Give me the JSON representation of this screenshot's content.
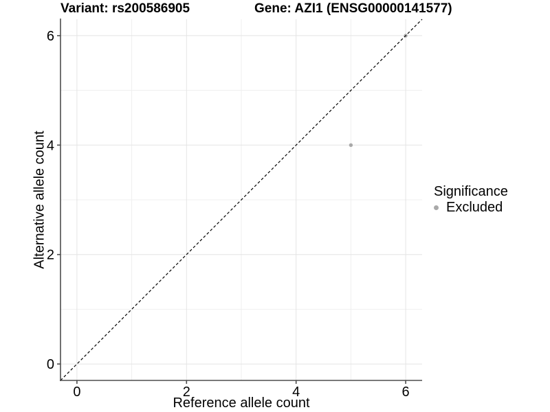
{
  "chart_data": {
    "type": "scatter",
    "title_left": "Variant: rs200586905",
    "title_right": "Gene: AZI1 (ENSG00000141577)",
    "xlabel": "Reference allele count",
    "ylabel": "Alternative allele count",
    "xlim": [
      -0.3,
      6.3
    ],
    "ylim": [
      -0.3,
      6.3
    ],
    "x_major_ticks": [
      0,
      2,
      4,
      6
    ],
    "y_major_ticks": [
      0,
      2,
      4,
      6
    ],
    "x_minor_ticks": [
      1,
      3,
      5
    ],
    "y_minor_ticks": [
      1,
      3,
      5
    ],
    "grid": true,
    "legend_position": "right",
    "identity_line": {
      "style": "dashed",
      "from": [
        -0.3,
        -0.3
      ],
      "to": [
        6.3,
        6.3
      ],
      "color": "#000000"
    },
    "series": [
      {
        "name": "Excluded",
        "color": "#a9a9a9",
        "points": [
          {
            "x": 5,
            "y": 4
          },
          {
            "x": 6,
            "y": 6
          }
        ]
      }
    ],
    "legend": {
      "title": "Significance",
      "items": [
        {
          "label": "Excluded",
          "color": "#a9a9a9"
        }
      ]
    },
    "style": {
      "grid_major_color": "#e4e4e4",
      "grid_minor_color": "#efefef",
      "axis_color": "#4d4d4d",
      "text_color": "#000000",
      "point_color": "#a9a9a9",
      "background": "#ffffff"
    }
  }
}
